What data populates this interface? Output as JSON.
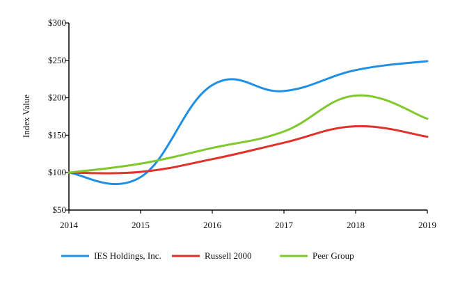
{
  "chart_data": {
    "type": "line",
    "title": "",
    "ylabel": "Index Value",
    "xlabel": "",
    "x": [
      "2014",
      "2015",
      "2016",
      "2017",
      "2018",
      "2019"
    ],
    "ylim": [
      50,
      300
    ],
    "yticks": [
      "$50",
      "$100",
      "$150",
      "$200",
      "$250",
      "$300"
    ],
    "ytick_values": [
      50,
      100,
      150,
      200,
      250,
      300
    ],
    "grid": false,
    "legend_position": "bottom",
    "series": [
      {
        "name": "IES Holdings, Inc.",
        "color": "#1f8fe5",
        "values": [
          100,
          94,
          217,
          209,
          237,
          249
        ]
      },
      {
        "name": "Russell 2000",
        "color": "#e0312b",
        "values": [
          100,
          101,
          118,
          140,
          162,
          148
        ]
      },
      {
        "name": "Peer Group",
        "color": "#7fc92c",
        "values": [
          100,
          112,
          133,
          155,
          203,
          172
        ]
      }
    ]
  }
}
